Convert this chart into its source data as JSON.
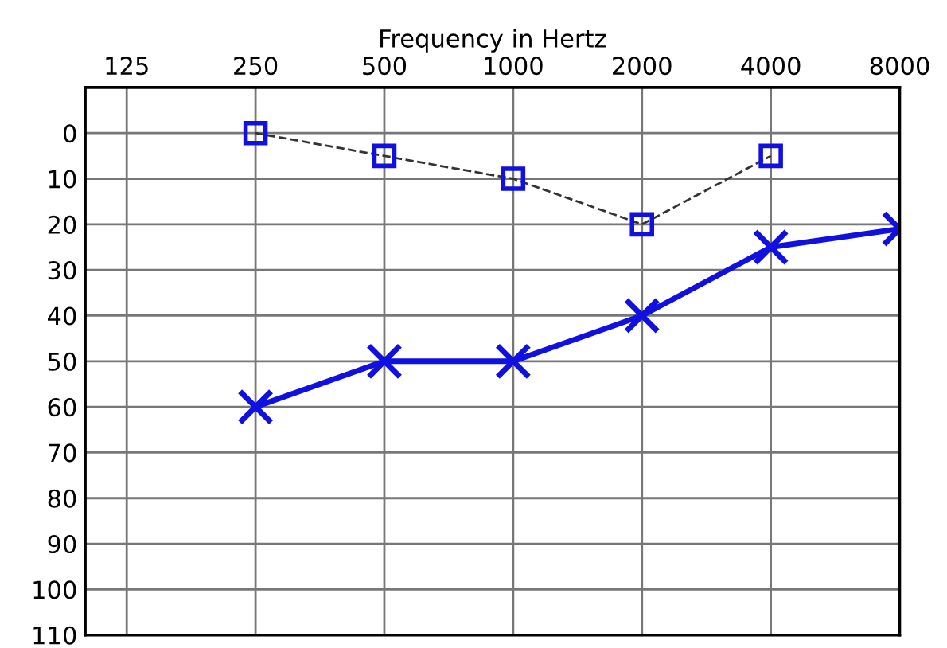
{
  "chart_data": {
    "type": "line",
    "xlabel": "Frequency in Hertz",
    "log": "x",
    "x": [
      250,
      500,
      1000,
      2000,
      4000,
      8000
    ],
    "xlim": [
      100,
      8000
    ],
    "xticks": [
      125,
      250,
      500,
      1000,
      2000,
      4000,
      8000
    ],
    "ylim": [
      110,
      -10
    ],
    "yticks": [
      0,
      10,
      20,
      30,
      40,
      50,
      60,
      70,
      80,
      90,
      100,
      110
    ],
    "grid": true,
    "series": [
      {
        "color": "#1010e0",
        "marker": "cross",
        "line_style": "solid",
        "values": [
          60,
          50,
          50,
          40,
          25,
          21
        ]
      },
      {
        "color": "#1010e0",
        "marker": "square",
        "line_style": "dashed",
        "x": [
          250,
          500,
          1000,
          2000,
          4000
        ],
        "values": [
          0,
          5,
          10,
          20,
          5
        ]
      }
    ]
  }
}
